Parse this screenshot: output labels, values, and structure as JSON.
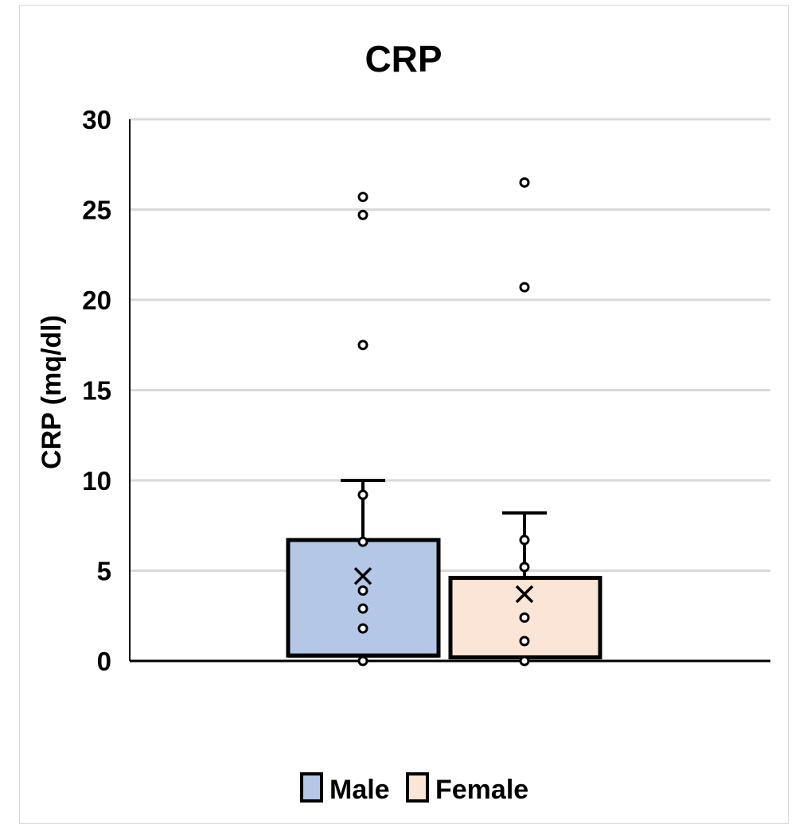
{
  "chart_data": {
    "type": "box",
    "title": "CRP",
    "xlabel": "",
    "ylabel": "CRP (mq/dl)",
    "ylim": [
      0,
      30
    ],
    "yticks": [
      0,
      5,
      10,
      15,
      20,
      25,
      30
    ],
    "grid": true,
    "legend": {
      "position": "bottom",
      "entries": [
        "Male",
        "Female"
      ]
    },
    "series": [
      {
        "name": "Male",
        "color": "#b4c7e7",
        "min": 0,
        "q1": 0.3,
        "median": 0.3,
        "q3": 6.7,
        "whisker_high": 10,
        "mean": 4.7,
        "points": [
          0,
          1.8,
          2.9,
          3.9,
          6.6,
          9.2,
          17.5,
          24.7,
          25.7
        ]
      },
      {
        "name": "Female",
        "color": "#fbe5d6",
        "min": 0,
        "q1": 0.2,
        "median": 0.2,
        "q3": 4.6,
        "whisker_high": 8.2,
        "mean": 3.7,
        "points": [
          0,
          1.1,
          2.4,
          5.2,
          6.7,
          20.7,
          26.5
        ]
      }
    ]
  }
}
